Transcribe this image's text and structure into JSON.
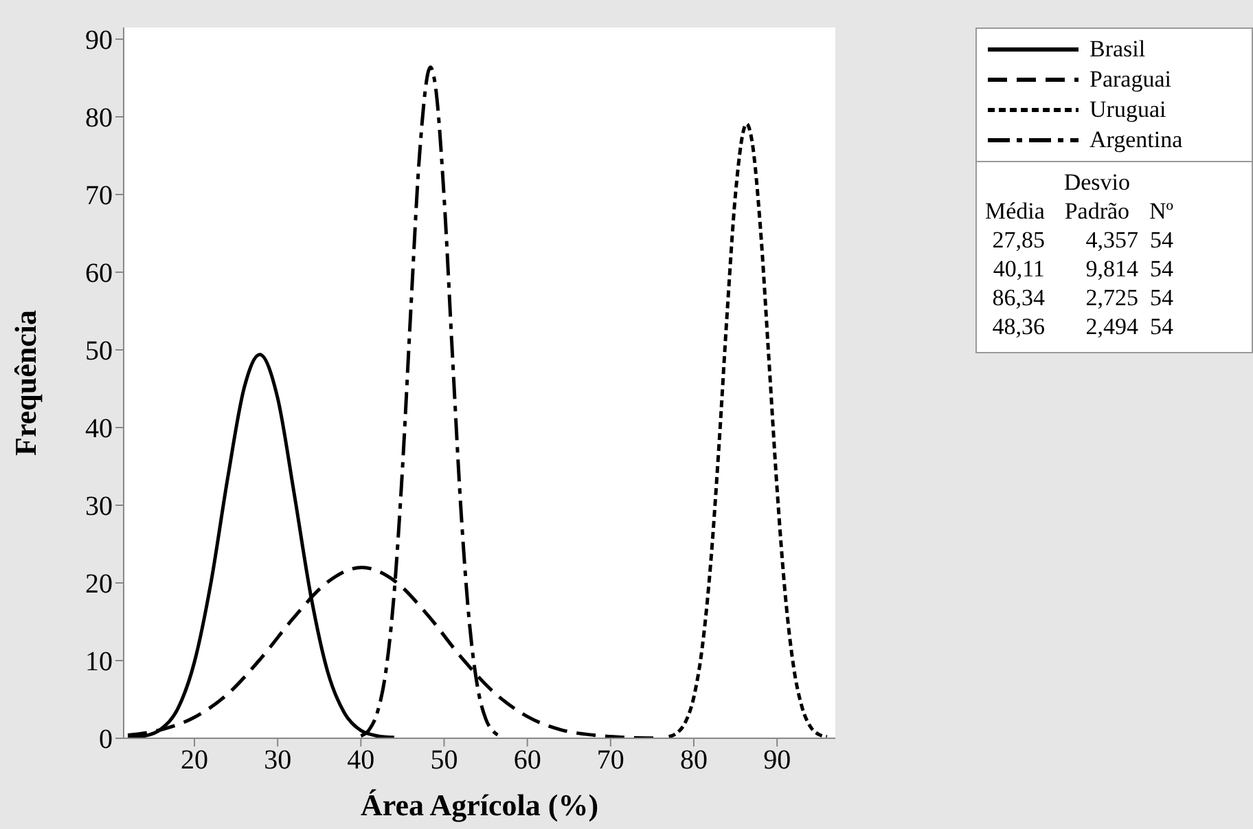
{
  "chart_data": {
    "type": "line",
    "xlabel": "Área Agrícola (%)",
    "ylabel": "Frequência",
    "xlim": [
      11.5,
      97
    ],
    "xticks": [
      20,
      30,
      40,
      50,
      60,
      70,
      80,
      90
    ],
    "ylim": [
      0,
      91.5
    ],
    "yticks": [
      0,
      10,
      20,
      30,
      40,
      50,
      60,
      70,
      80,
      90
    ],
    "grid": false,
    "legend": "right",
    "marker": "none",
    "series": [
      {
        "name": "Brasil",
        "color": "#000000",
        "line_style": "solid",
        "x": [
          12,
          14,
          16,
          18,
          20,
          22,
          24,
          26,
          27.85,
          30,
          32,
          34,
          36,
          38,
          40,
          42,
          44
        ],
        "values": [
          0.1,
          0.3,
          1.2,
          3.8,
          9.8,
          20.1,
          33.5,
          45.2,
          49.4,
          43.8,
          31.4,
          18.3,
          8.6,
          3.3,
          1,
          0.3,
          0.1
        ]
      },
      {
        "name": "Paraguai",
        "color": "#000000",
        "line_style": "dashed",
        "x": [
          12,
          16,
          20,
          24,
          28,
          32,
          36,
          40.11,
          44,
          48,
          52,
          56,
          60,
          64,
          68,
          72,
          76
        ],
        "values": [
          0.4,
          1.1,
          2.7,
          5.7,
          10.3,
          15.6,
          20.1,
          22,
          20.3,
          15.9,
          10.5,
          5.9,
          2.8,
          1.1,
          0.4,
          0.1,
          0
        ]
      },
      {
        "name": "Uruguai",
        "color": "#000000",
        "line_style": "dotted",
        "x": [
          77,
          78,
          79,
          80,
          81,
          82,
          83,
          84,
          85,
          86.34,
          87,
          88,
          89,
          90,
          91,
          92,
          93,
          94,
          95,
          96
        ],
        "values": [
          0.2,
          0.7,
          2.1,
          5.3,
          11.6,
          22.2,
          37.3,
          54.7,
          70,
          79.1,
          76.8,
          65.7,
          49.1,
          32.1,
          18.3,
          9.1,
          4,
          1.5,
          0.5,
          0.2
        ]
      },
      {
        "name": "Argentina",
        "color": "#000000",
        "line_style": "dashdot",
        "x": [
          40,
          41,
          42,
          43,
          44,
          45,
          46,
          47,
          48.36,
          49,
          50,
          51,
          52,
          53,
          54,
          55,
          56,
          57
        ],
        "values": [
          0.3,
          1.1,
          3.4,
          8.6,
          18.7,
          34.8,
          55.2,
          74.4,
          86.4,
          83.6,
          69.6,
          49.3,
          29.8,
          15.3,
          6.7,
          2.5,
          0.8,
          0.2
        ]
      }
    ],
    "annotations": [
      "Média",
      "Desvio Padrão",
      "Nº",
      "27,85",
      "4,357",
      "54",
      "40,11",
      "9,814",
      "54",
      "86,34",
      "2,725",
      "54",
      "48,36",
      "2,494",
      "54"
    ]
  }
}
